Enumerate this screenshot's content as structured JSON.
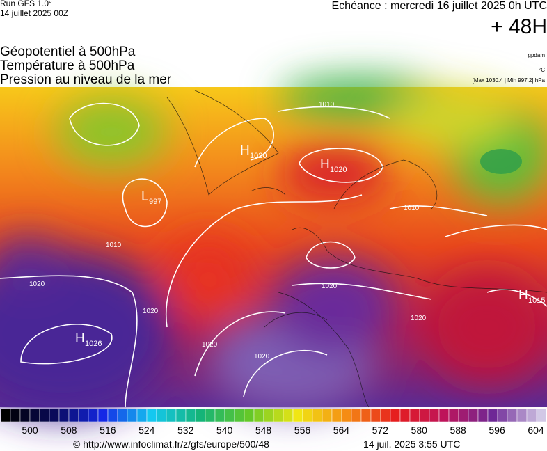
{
  "header": {
    "run": "Run GFS 1.0°",
    "run_date": "14 juillet 2025 00Z",
    "echeance": "Echéance : mercredi 16 juillet 2025 0h UTC",
    "lead": "+ 48H"
  },
  "layers": [
    "Géopotentiel à 500hPa",
    "Température à 500hPa",
    "Pression au niveau de la mer"
  ],
  "units": {
    "geopotential": "gpdam",
    "temperature": "°C",
    "pressure": "[Max 1030.4 | Min 997.2] hPa"
  },
  "centers": [
    {
      "kind": "H",
      "value": "1026"
    },
    {
      "kind": "H",
      "value": "1020"
    },
    {
      "kind": "H",
      "value": "1015"
    },
    {
      "kind": "L",
      "value": "997"
    },
    {
      "kind": "H",
      "value": "1020"
    }
  ],
  "isobar_labels": [
    "1020",
    "1020",
    "1020",
    "1020",
    "1020",
    "1010",
    "1010",
    "1010",
    "1020"
  ],
  "colorbar": {
    "ticks": [
      500,
      508,
      516,
      524,
      532,
      540,
      548,
      556,
      564,
      572,
      580,
      588,
      596,
      604
    ]
  },
  "footer": {
    "url": "© http://www.infoclimat.fr/z/gfs/europe/500/48",
    "timestamp": "14 juil. 2025  3:55 UTC"
  }
}
